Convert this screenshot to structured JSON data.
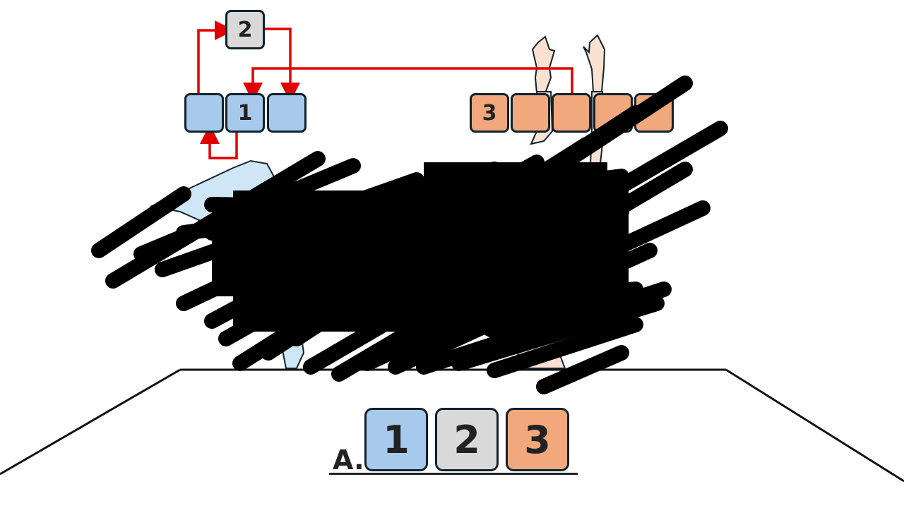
{
  "puzzle": {
    "left_stack": {
      "top_tile": "2",
      "row_tiles": [
        "",
        "1",
        ""
      ]
    },
    "right_row": {
      "tiles": [
        "3",
        "",
        "",
        "",
        ""
      ]
    }
  },
  "answer": {
    "label": "A.",
    "tiles": [
      "1",
      "2",
      "3"
    ]
  },
  "colors": {
    "tile_blue": "#a7c9ec",
    "tile_gray": "#d9d9d9",
    "tile_orange": "#f0a87c",
    "tile_border": "#10222e",
    "arrow_red": "#e00000",
    "scribble": "#000000",
    "figure_left": "#cfe6f7",
    "figure_right": "#fbe1d2"
  },
  "icons": {
    "arrows": "red-arrow-icon",
    "scribble": "scribble-redaction-icon",
    "hands": "raised-hands-icon"
  }
}
